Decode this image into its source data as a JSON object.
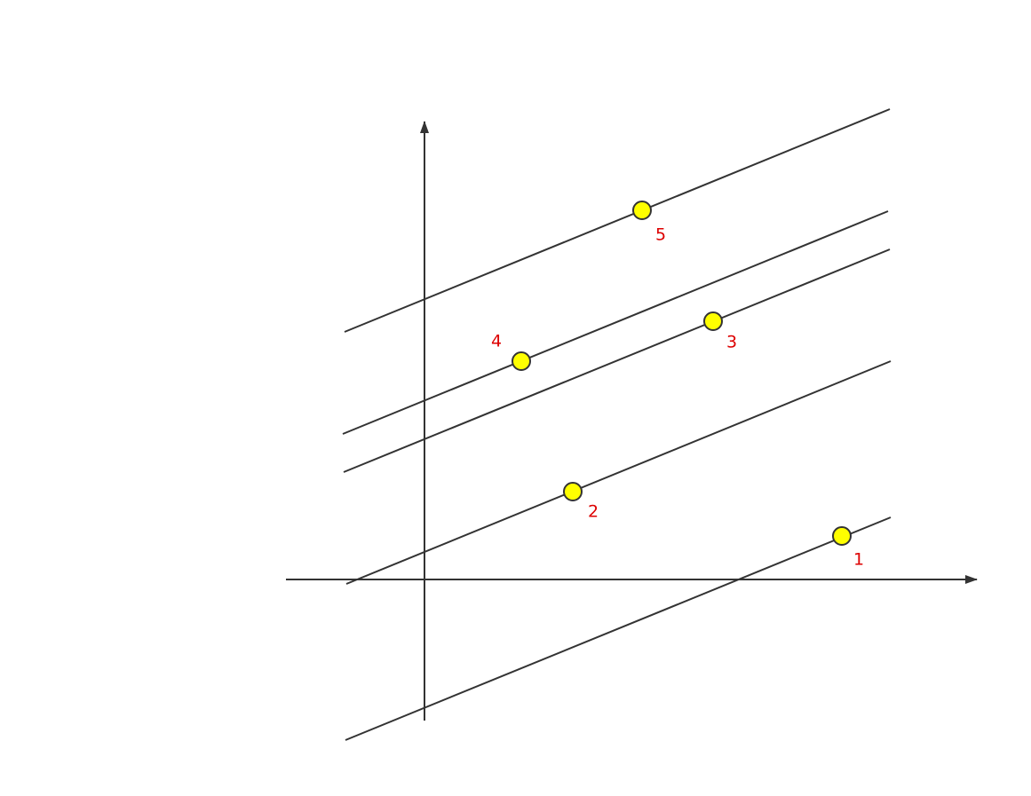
{
  "points": [
    {
      "label": "1"
    },
    {
      "label": "2"
    },
    {
      "label": "3"
    },
    {
      "label": "4"
    },
    {
      "label": "5"
    }
  ]
}
